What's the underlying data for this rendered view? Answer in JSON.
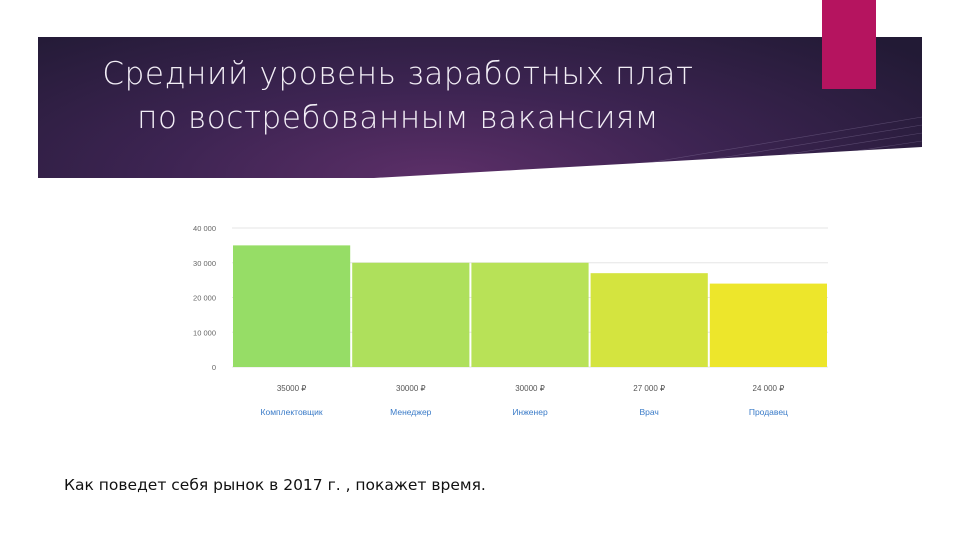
{
  "slide": {
    "title_line1": "Средний уровень заработных плат",
    "title_line2": "по востребованным вакансиям",
    "caption": "Как поведет себя рынок в 2017 г. , покажет время.",
    "colors": {
      "banner": "#2a1d3d",
      "accent": "#b5145f"
    }
  },
  "chart_data": {
    "type": "bar",
    "categories": [
      "Комплектовщик",
      "Менеджер",
      "Инженер",
      "Врач",
      "Продавец"
    ],
    "value_labels": [
      "35000 ₽",
      "30000 ₽",
      "30000 ₽",
      "27 000 ₽",
      "24 000 ₽"
    ],
    "values": [
      35000,
      30000,
      30000,
      27000,
      24000
    ],
    "colors": [
      "#96dd66",
      "#aee05c",
      "#b8e257",
      "#d4e43f",
      "#ede62b"
    ],
    "yticks": [
      "0",
      "10 000",
      "20 000",
      "30 000",
      "40 000"
    ],
    "ylim": [
      0,
      40000
    ],
    "grid": true,
    "title": "",
    "xlabel": "",
    "ylabel": ""
  }
}
